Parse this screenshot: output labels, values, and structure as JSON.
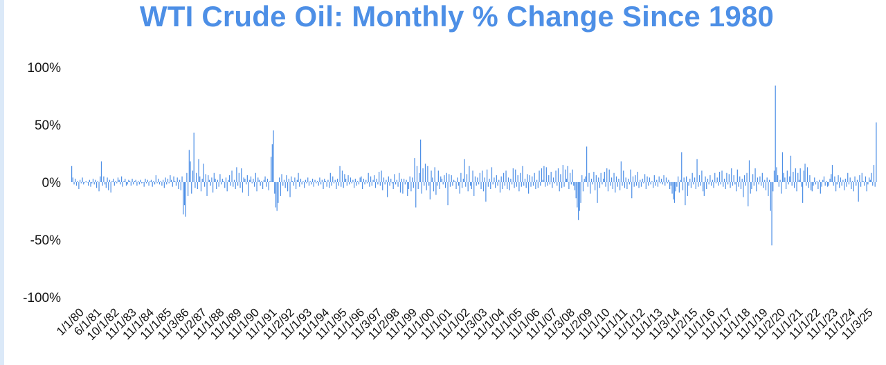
{
  "chart_data": {
    "type": "bar",
    "title": "WTI Crude Oil: Monthly % Change Since 1980",
    "xlabel": "",
    "ylabel": "",
    "ylim": [
      -100,
      100
    ],
    "yticks": [
      "100%",
      "50%",
      "0%",
      "-50%",
      "-100%"
    ],
    "ytick_values": [
      100,
      50,
      0,
      -50,
      -100
    ],
    "xtick_labels": [
      "1/1/80",
      "6/1/81",
      "10/1/82",
      "11/1/83",
      "11/1/84",
      "11/1/85",
      "11/3/86",
      "11/2/87",
      "11/1/88",
      "11/1/89",
      "11/1/90",
      "11/1/91",
      "11/2/92",
      "11/1/93",
      "11/1/94",
      "11/1/95",
      "11/1/96",
      "11/3/97",
      "11/2/98",
      "11/1/99",
      "11/1/00",
      "11/1/01",
      "11/1/02",
      "11/3/03",
      "11/1/04",
      "11/1/05",
      "11/1/06",
      "11/1/07",
      "11/3/08",
      "11/2/09",
      "11/1/10",
      "11/1/11",
      "11/1/12",
      "11/1/13",
      "11/3/14",
      "11/2/15",
      "11/1/16",
      "11/1/17",
      "11/1/18",
      "11/1/19",
      "11/2/20",
      "11/1/21",
      "11/1/22",
      "11/1/23",
      "11/1/24",
      "11/3/25"
    ],
    "bar_color": "#4d8fe6",
    "grid": false,
    "legend": "none",
    "x_start": "1980-01",
    "values": [
      14,
      4,
      -2,
      3,
      -3,
      1,
      -6,
      2,
      -1,
      4,
      -2,
      0,
      1,
      0,
      -3,
      2,
      -4,
      -1,
      3,
      -2,
      2,
      -5,
      1,
      -8,
      5,
      18,
      -3,
      5,
      -2,
      -5,
      4,
      -7,
      2,
      -9,
      1,
      3,
      -3,
      1,
      -1,
      4,
      2,
      -2,
      5,
      -4,
      1,
      3,
      -3,
      -2,
      2,
      1,
      -3,
      3,
      -2,
      1,
      2,
      -3,
      1,
      -2,
      2,
      -1,
      0,
      -4,
      3,
      -1,
      2,
      -3,
      1,
      2,
      -4,
      1,
      -2,
      6,
      -1,
      3,
      -2,
      1,
      -3,
      2,
      -5,
      4,
      -2,
      3,
      -1,
      6,
      2,
      -4,
      5,
      1,
      -3,
      4,
      -6,
      2,
      -7,
      5,
      -28,
      -20,
      -30,
      8,
      -12,
      28,
      18,
      -10,
      10,
      43,
      -5,
      8,
      -6,
      20,
      5,
      -8,
      3,
      16,
      -4,
      7,
      -12,
      6,
      2,
      -3,
      4,
      -9,
      8,
      3,
      -6,
      2,
      -4,
      7,
      -2,
      3,
      1,
      -5,
      4,
      -8,
      2,
      6,
      -3,
      10,
      -4,
      2,
      -6,
      13,
      -3,
      8,
      -5,
      12,
      -9,
      4,
      3,
      -2,
      6,
      -12,
      2,
      5,
      -1,
      3,
      -4,
      8,
      -8,
      4,
      2,
      -3,
      1,
      -6,
      2,
      5,
      -4,
      3,
      -7,
      1,
      22,
      33,
      45,
      -10,
      -22,
      -25,
      -18,
      4,
      -12,
      7,
      -3,
      2,
      -5,
      6,
      -8,
      3,
      -13,
      5,
      1,
      -3,
      4,
      -6,
      2,
      8,
      -4,
      3,
      -2,
      1,
      -5,
      2,
      -1,
      4,
      -3,
      1,
      -2,
      3,
      -4,
      2,
      -1,
      1,
      -3,
      4,
      -2,
      2,
      -6,
      3,
      1,
      -4,
      2,
      -5,
      8,
      -3,
      5,
      -1,
      2,
      -6,
      3,
      -3,
      14,
      -4,
      10,
      -5,
      7,
      3,
      -3,
      6,
      -2,
      4,
      -1,
      2,
      -5,
      3,
      -3,
      1,
      -2,
      4,
      5,
      -6,
      3,
      -2,
      2,
      -1,
      8,
      -4,
      5,
      -3,
      2,
      6,
      -5,
      3,
      -2,
      9,
      -3,
      10,
      -7,
      4,
      -2,
      2,
      -13,
      5,
      -3,
      3,
      -1,
      -6,
      7,
      -2,
      2,
      -4,
      8,
      -9,
      3,
      -10,
      3,
      -2,
      2,
      -12,
      -6,
      5,
      -8,
      4,
      -5,
      21,
      -22,
      14,
      -6,
      8,
      37,
      -10,
      12,
      -3,
      16,
      -7,
      14,
      -3,
      -15,
      10,
      4,
      -8,
      13,
      -11,
      -3,
      10,
      -6,
      5,
      3,
      -2,
      6,
      -5,
      8,
      -20,
      7,
      -4,
      6,
      -3,
      2,
      1,
      -6,
      4,
      -3,
      -10,
      8,
      -5,
      3,
      20,
      -4,
      7,
      -8,
      14,
      -3,
      -6,
      10,
      -12,
      5,
      -3,
      4,
      -2,
      8,
      -6,
      10,
      -8,
      4,
      -17,
      11,
      -4,
      3,
      -6,
      13,
      -2,
      4,
      -5,
      6,
      -3,
      2,
      -9,
      5,
      -6,
      8,
      -3,
      10,
      -6,
      4,
      -7,
      3,
      -2,
      12,
      -5,
      11,
      -4,
      6,
      -8,
      8,
      -4,
      14,
      -3,
      3,
      -5,
      7,
      -10,
      6,
      -4,
      5,
      -3,
      8,
      -6,
      2,
      -5,
      10,
      -3,
      12,
      2,
      14,
      -4,
      13,
      -3,
      6,
      -2,
      9,
      -5,
      4,
      -1,
      10,
      -3,
      12,
      -8,
      7,
      -5,
      15,
      -4,
      11,
      3,
      14,
      -6,
      8,
      -2,
      11,
      -3,
      -7,
      -14,
      -22,
      -33,
      -25,
      -18,
      6,
      -8,
      3,
      5,
      31,
      -4,
      8,
      -10,
      3,
      -2,
      9,
      -7,
      6,
      -18,
      4,
      -5,
      8,
      -2,
      3,
      9,
      -4,
      12,
      -8,
      11,
      -3,
      4,
      -6,
      8,
      -9,
      5,
      -4,
      3,
      -7,
      18,
      -3,
      10,
      -5,
      4,
      -6,
      3,
      -2,
      11,
      -14,
      5,
      -4,
      6,
      -3,
      9,
      -5,
      2,
      -4,
      3,
      -1,
      7,
      -6,
      5,
      -3,
      4,
      -2,
      1,
      -5,
      6,
      -3,
      2,
      -4,
      5,
      -1,
      3,
      -2,
      6,
      -3,
      4,
      -1,
      2,
      -6,
      -3,
      -10,
      -15,
      -18,
      -8,
      -4,
      5,
      -9,
      2,
      26,
      -7,
      4,
      -20,
      5,
      -12,
      -3,
      3,
      -5,
      8,
      -2,
      4,
      -6,
      20,
      -4,
      6,
      -3,
      10,
      -8,
      -12,
      5,
      -6,
      3,
      -2,
      6,
      -3,
      2,
      -5,
      8,
      -1,
      4,
      -3,
      9,
      -2,
      10,
      -4,
      3,
      -6,
      8,
      -2,
      7,
      -5,
      12,
      -3,
      6,
      -2,
      -8,
      11,
      -4,
      5,
      -6,
      3,
      -13,
      6,
      -3,
      8,
      -21,
      19,
      -10,
      -6,
      7,
      -3,
      12,
      -8,
      4,
      -2,
      5,
      -3,
      8,
      -5,
      2,
      -7,
      4,
      -12,
      2,
      -25,
      -55,
      -8,
      10,
      84,
      13,
      6,
      -4,
      2,
      -10,
      26,
      8,
      4,
      -6,
      10,
      -2,
      5,
      23,
      -3,
      9,
      -5,
      12,
      -8,
      8,
      2,
      12,
      -4,
      -18,
      10,
      16,
      -3,
      13,
      -5,
      6,
      -7,
      -8,
      -3,
      4,
      -2,
      1,
      -6,
      2,
      -10,
      -4,
      2,
      5,
      -3,
      1,
      -4,
      -3,
      3,
      7,
      15,
      -3,
      5,
      -8,
      -2,
      6,
      -5,
      4,
      -3,
      2,
      -7,
      3,
      -4,
      8,
      -2,
      4,
      -6,
      1,
      -8,
      5,
      -3,
      2,
      -17,
      6,
      -4,
      8,
      1,
      -3,
      5,
      -8,
      -2,
      4,
      2,
      8,
      -3,
      15,
      -4,
      52
    ]
  }
}
